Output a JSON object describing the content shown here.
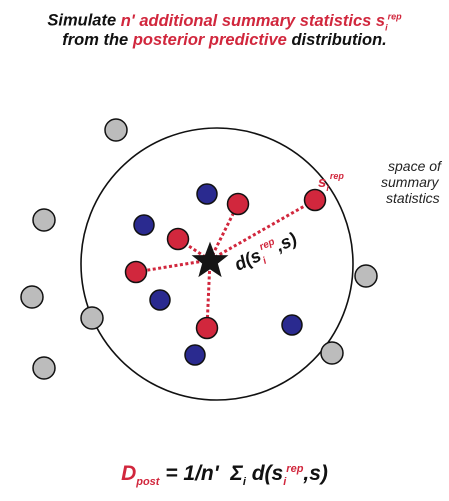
{
  "header": {
    "line1_pre": "Simulate ",
    "line1_highlight": "n' additional summary statistics s",
    "line1_sub": "i",
    "line1_sup": "rep",
    "line2_pre": "from the ",
    "line2_highlight": "posterior predictive",
    "line2_post": " distribution."
  },
  "side_text": {
    "line1": "space of",
    "line2": "summary",
    "line3": "statistics"
  },
  "labels": {
    "srep_base": "s",
    "srep_sub": "i",
    "srep_sup": "rep",
    "dist_pre": "d(s",
    "dist_sub": "i",
    "dist_sup": "rep",
    "dist_post": ",s)"
  },
  "formula": {
    "d": "D",
    "d_sub": "post",
    "eq": "= 1/n'",
    "sigma": "Σ",
    "sigma_sub": "i",
    "d_pre": "d(s",
    "s_sub": "i",
    "s_sup": "rep",
    "d_post": ",s)"
  },
  "colors": {
    "red": "#d1273d",
    "blue": "#2a2a8f",
    "gray": "#bcbcbc",
    "star": "#151515"
  }
}
